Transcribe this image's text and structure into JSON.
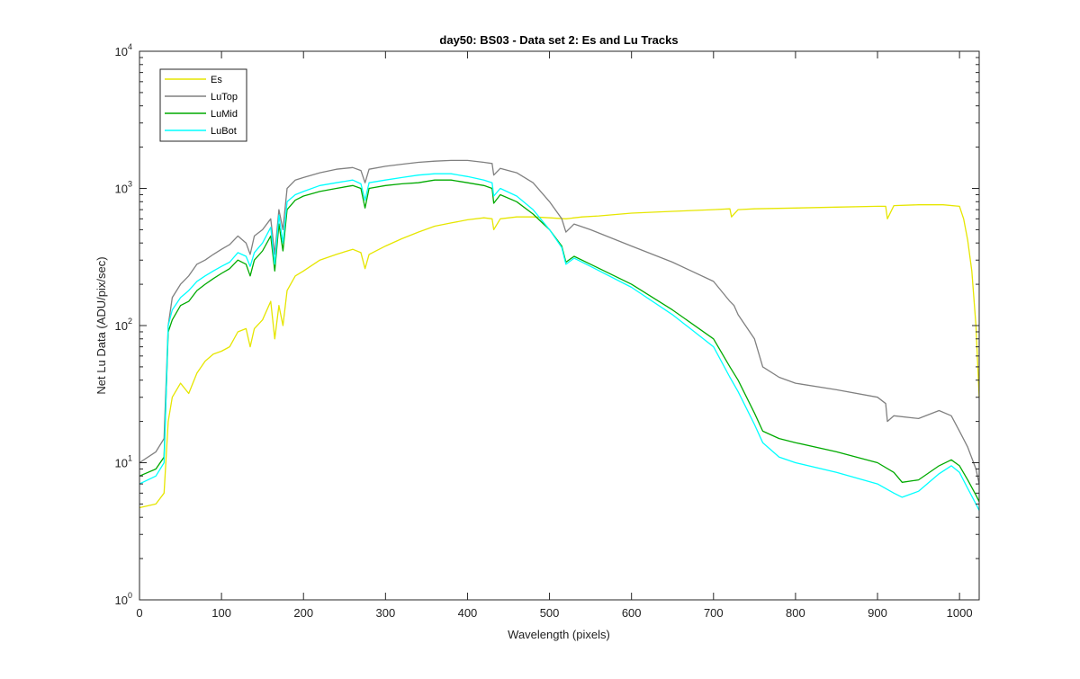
{
  "chart_data": {
    "type": "line",
    "title": "day50: BS03 - Data set 2: Es and Lu Tracks",
    "xlabel": "Wavelength (pixels)",
    "ylabel": "Net Lu Data (ADU/pix/sec)",
    "xlim": [
      0,
      1024
    ],
    "ylim": [
      1,
      10000
    ],
    "yscale": "log",
    "grid": false,
    "legend_position": "top-left",
    "x_ticks": [
      {
        "value": 0,
        "label": "0"
      },
      {
        "value": 100,
        "label": "100"
      },
      {
        "value": 200,
        "label": "200"
      },
      {
        "value": 300,
        "label": "300"
      },
      {
        "value": 400,
        "label": "400"
      },
      {
        "value": 500,
        "label": "500"
      },
      {
        "value": 600,
        "label": "600"
      },
      {
        "value": 700,
        "label": "700"
      },
      {
        "value": 800,
        "label": "800"
      },
      {
        "value": 900,
        "label": "900"
      },
      {
        "value": 1000,
        "label": "1000"
      }
    ],
    "y_ticks": [
      {
        "value": 1,
        "base": "10",
        "exp": "0"
      },
      {
        "value": 10,
        "base": "10",
        "exp": "1"
      },
      {
        "value": 100,
        "base": "10",
        "exp": "2"
      },
      {
        "value": 1000,
        "base": "10",
        "exp": "3"
      },
      {
        "value": 10000,
        "base": "10",
        "exp": "4"
      }
    ],
    "series": [
      {
        "name": "Es",
        "color": "#e6e600",
        "x": [
          0,
          20,
          30,
          35,
          40,
          50,
          60,
          70,
          80,
          90,
          100,
          110,
          120,
          130,
          135,
          140,
          150,
          160,
          165,
          170,
          175,
          180,
          190,
          200,
          220,
          240,
          260,
          270,
          275,
          280,
          300,
          320,
          340,
          360,
          380,
          400,
          420,
          430,
          432,
          440,
          460,
          480,
          500,
          520,
          540,
          560,
          600,
          650,
          700,
          720,
          722,
          730,
          750,
          800,
          850,
          900,
          910,
          912,
          920,
          950,
          980,
          1000,
          1005,
          1010,
          1015,
          1020,
          1024
        ],
        "y": [
          4.7,
          5.0,
          6.0,
          20,
          30,
          38,
          32,
          45,
          55,
          62,
          65,
          70,
          90,
          95,
          70,
          95,
          110,
          150,
          80,
          140,
          100,
          180,
          230,
          250,
          300,
          330,
          360,
          340,
          260,
          330,
          380,
          430,
          480,
          530,
          560,
          590,
          610,
          600,
          500,
          600,
          620,
          620,
          610,
          600,
          620,
          630,
          660,
          680,
          700,
          710,
          620,
          700,
          710,
          720,
          730,
          740,
          740,
          600,
          750,
          760,
          760,
          740,
          600,
          420,
          250,
          100,
          30
        ]
      },
      {
        "name": "LuTop",
        "color": "#808080",
        "x": [
          0,
          20,
          30,
          35,
          40,
          50,
          60,
          70,
          80,
          90,
          100,
          110,
          120,
          130,
          135,
          140,
          150,
          160,
          165,
          170,
          175,
          180,
          190,
          200,
          220,
          240,
          260,
          270,
          275,
          280,
          300,
          320,
          340,
          360,
          380,
          400,
          420,
          430,
          432,
          440,
          460,
          480,
          500,
          515,
          520,
          530,
          550,
          600,
          650,
          700,
          720,
          725,
          730,
          750,
          760,
          780,
          800,
          850,
          900,
          910,
          912,
          920,
          950,
          975,
          990,
          1000,
          1010,
          1020,
          1024
        ],
        "y": [
          10,
          12,
          15,
          100,
          160,
          200,
          230,
          280,
          300,
          330,
          360,
          390,
          450,
          400,
          330,
          450,
          500,
          600,
          330,
          700,
          500,
          1000,
          1150,
          1200,
          1300,
          1380,
          1420,
          1350,
          1100,
          1380,
          1450,
          1500,
          1550,
          1580,
          1600,
          1600,
          1550,
          1520,
          1250,
          1400,
          1300,
          1100,
          800,
          600,
          480,
          550,
          500,
          380,
          290,
          210,
          150,
          140,
          120,
          80,
          50,
          42,
          38,
          34,
          30,
          27,
          20,
          22,
          21,
          24,
          22,
          17,
          13,
          9,
          7
        ]
      },
      {
        "name": "LuMid",
        "color": "#00aa00",
        "x": [
          0,
          20,
          30,
          35,
          40,
          50,
          60,
          70,
          80,
          90,
          100,
          110,
          120,
          130,
          135,
          140,
          150,
          160,
          165,
          170,
          175,
          180,
          190,
          200,
          220,
          240,
          260,
          270,
          275,
          280,
          300,
          320,
          340,
          360,
          380,
          400,
          420,
          430,
          432,
          440,
          460,
          480,
          500,
          515,
          520,
          530,
          550,
          600,
          650,
          700,
          720,
          730,
          750,
          760,
          780,
          800,
          850,
          900,
          920,
          930,
          950,
          975,
          990,
          1000,
          1010,
          1020,
          1024
        ],
        "y": [
          8,
          9,
          11,
          90,
          110,
          140,
          150,
          180,
          200,
          220,
          240,
          260,
          300,
          280,
          230,
          300,
          350,
          450,
          250,
          550,
          350,
          700,
          820,
          880,
          950,
          1000,
          1050,
          1000,
          720,
          1000,
          1050,
          1080,
          1100,
          1150,
          1150,
          1100,
          1050,
          1000,
          780,
          900,
          800,
          650,
          500,
          380,
          290,
          320,
          280,
          200,
          130,
          80,
          50,
          40,
          23,
          17,
          15,
          14,
          12,
          10,
          8.5,
          7.2,
          7.5,
          9.5,
          10.5,
          9.5,
          7.5,
          5.8,
          5.2
        ]
      },
      {
        "name": "LuBot",
        "color": "#00ffff",
        "x": [
          0,
          20,
          30,
          35,
          40,
          50,
          60,
          70,
          80,
          90,
          100,
          110,
          120,
          130,
          135,
          140,
          150,
          160,
          165,
          170,
          175,
          180,
          190,
          200,
          220,
          240,
          260,
          270,
          275,
          280,
          300,
          320,
          340,
          360,
          380,
          400,
          420,
          430,
          432,
          440,
          460,
          480,
          500,
          515,
          520,
          530,
          550,
          600,
          650,
          700,
          720,
          730,
          750,
          760,
          780,
          800,
          850,
          900,
          920,
          930,
          950,
          975,
          990,
          1000,
          1010,
          1020,
          1024
        ],
        "y": [
          7,
          8,
          10,
          100,
          130,
          160,
          180,
          210,
          230,
          250,
          270,
          290,
          340,
          320,
          270,
          340,
          400,
          520,
          280,
          640,
          400,
          800,
          900,
          950,
          1050,
          1100,
          1150,
          1080,
          820,
          1100,
          1150,
          1200,
          1250,
          1280,
          1280,
          1220,
          1150,
          1100,
          880,
          1000,
          880,
          700,
          500,
          370,
          280,
          310,
          270,
          190,
          120,
          70,
          42,
          33,
          19,
          14,
          11,
          10,
          8.5,
          7,
          6,
          5.6,
          6.2,
          8.3,
          9.5,
          8.5,
          6.5,
          5.0,
          4.5
        ]
      }
    ]
  }
}
